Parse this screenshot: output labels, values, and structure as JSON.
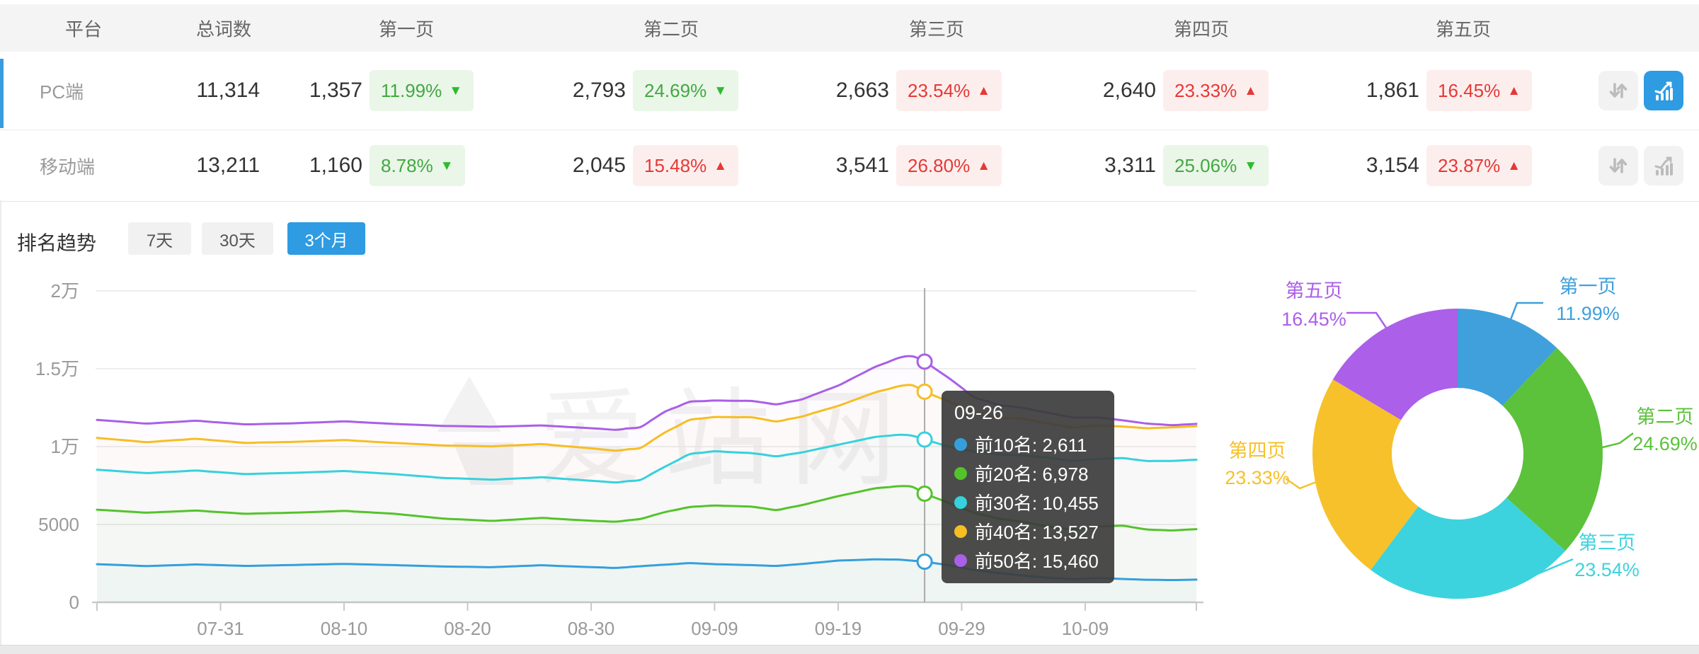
{
  "table": {
    "headers": [
      "平台",
      "总词数",
      "第一页",
      "第二页",
      "第三页",
      "第四页",
      "第五页"
    ],
    "rows": [
      {
        "platform": "PC端",
        "total": "11,314",
        "selected": true,
        "trend_button_active": true,
        "pages": [
          {
            "count": "1,357",
            "pct": "11.99%",
            "trend": "down",
            "tone": "green"
          },
          {
            "count": "2,793",
            "pct": "24.69%",
            "trend": "down",
            "tone": "green"
          },
          {
            "count": "2,663",
            "pct": "23.54%",
            "trend": "up",
            "tone": "red"
          },
          {
            "count": "2,640",
            "pct": "23.33%",
            "trend": "up",
            "tone": "red"
          },
          {
            "count": "1,861",
            "pct": "16.45%",
            "trend": "up",
            "tone": "red"
          }
        ]
      },
      {
        "platform": "移动端",
        "total": "13,211",
        "selected": false,
        "trend_button_active": false,
        "pages": [
          {
            "count": "1,160",
            "pct": "8.78%",
            "trend": "down",
            "tone": "green"
          },
          {
            "count": "2,045",
            "pct": "15.48%",
            "trend": "up",
            "tone": "red"
          },
          {
            "count": "3,541",
            "pct": "26.80%",
            "trend": "up",
            "tone": "red"
          },
          {
            "count": "3,311",
            "pct": "25.06%",
            "trend": "down",
            "tone": "green"
          },
          {
            "count": "3,154",
            "pct": "23.87%",
            "trend": "up",
            "tone": "red"
          }
        ]
      }
    ]
  },
  "trend_section": {
    "title": "排名趋势",
    "tabs": [
      {
        "label": "7天",
        "active": false
      },
      {
        "label": "30天",
        "active": false
      },
      {
        "label": "3个月",
        "active": true
      }
    ]
  },
  "watermark": "爱站网",
  "tooltip": {
    "title": "09-26",
    "rows": [
      {
        "name": "前10名",
        "value": "2,611",
        "color": "#359fdc"
      },
      {
        "name": "前20名",
        "value": "6,978",
        "color": "#54c32b"
      },
      {
        "name": "前30名",
        "value": "10,455",
        "color": "#36d1dc"
      },
      {
        "name": "前40名",
        "value": "13,527",
        "color": "#f6be23"
      },
      {
        "name": "前50名",
        "value": "15,460",
        "color": "#a95fe6"
      }
    ]
  },
  "chart_data": [
    {
      "type": "line",
      "title": "排名趋势 3个月",
      "x_axis": {
        "visible_labels": [
          "07-31",
          "08-10",
          "08-20",
          "08-30",
          "09-09",
          "09-19",
          "09-29",
          "10-09"
        ],
        "range_days": 90,
        "label_every": 10,
        "first_label_index": 10
      },
      "y_axis": {
        "ticks": [
          {
            "label": "2万",
            "value": 20000
          },
          {
            "label": "1.5万",
            "value": 15000
          },
          {
            "label": "1万",
            "value": 10000
          },
          {
            "label": "5000",
            "value": 5000
          },
          {
            "label": "0",
            "value": 0
          }
        ],
        "max": 20000,
        "grid": true
      },
      "highlight": {
        "date": "09-26",
        "index": 67
      },
      "series": [
        {
          "name": "前10名",
          "color": "#359fdc",
          "anchors": [
            [
              0,
              2450
            ],
            [
              4,
              2330
            ],
            [
              8,
              2430
            ],
            [
              12,
              2340
            ],
            [
              16,
              2400
            ],
            [
              20,
              2470
            ],
            [
              24,
              2390
            ],
            [
              28,
              2300
            ],
            [
              32,
              2260
            ],
            [
              36,
              2380
            ],
            [
              40,
              2260
            ],
            [
              42,
              2210
            ],
            [
              44,
              2320
            ],
            [
              46,
              2420
            ],
            [
              48,
              2520
            ],
            [
              50,
              2450
            ],
            [
              53,
              2390
            ],
            [
              55,
              2340
            ],
            [
              57,
              2460
            ],
            [
              60,
              2680
            ],
            [
              63,
              2760
            ],
            [
              65,
              2740
            ],
            [
              67,
              2611
            ],
            [
              69,
              2380
            ],
            [
              71,
              2080
            ],
            [
              73,
              1880
            ],
            [
              75,
              1720
            ],
            [
              77,
              1580
            ],
            [
              79,
              1490
            ],
            [
              81,
              1560
            ],
            [
              83,
              1500
            ],
            [
              85,
              1450
            ],
            [
              87,
              1430
            ],
            [
              89,
              1460
            ]
          ]
        },
        {
          "name": "前20名",
          "color": "#54c32b",
          "anchors": [
            [
              0,
              5950
            ],
            [
              4,
              5760
            ],
            [
              8,
              5890
            ],
            [
              12,
              5690
            ],
            [
              16,
              5760
            ],
            [
              20,
              5870
            ],
            [
              24,
              5690
            ],
            [
              28,
              5380
            ],
            [
              32,
              5230
            ],
            [
              36,
              5420
            ],
            [
              40,
              5240
            ],
            [
              42,
              5180
            ],
            [
              44,
              5360
            ],
            [
              46,
              5800
            ],
            [
              48,
              6120
            ],
            [
              50,
              6220
            ],
            [
              53,
              6140
            ],
            [
              55,
              5930
            ],
            [
              57,
              6230
            ],
            [
              60,
              6820
            ],
            [
              63,
              7320
            ],
            [
              65,
              7460
            ],
            [
              66,
              7420
            ],
            [
              67,
              6978
            ],
            [
              69,
              6380
            ],
            [
              71,
              5760
            ],
            [
              73,
              5380
            ],
            [
              75,
              5160
            ],
            [
              77,
              4870
            ],
            [
              79,
              4680
            ],
            [
              81,
              4860
            ],
            [
              83,
              4920
            ],
            [
              85,
              4680
            ],
            [
              87,
              4620
            ],
            [
              89,
              4700
            ]
          ]
        },
        {
          "name": "前30名",
          "color": "#36d1dc",
          "anchors": [
            [
              0,
              8520
            ],
            [
              4,
              8300
            ],
            [
              8,
              8460
            ],
            [
              12,
              8240
            ],
            [
              16,
              8320
            ],
            [
              20,
              8430
            ],
            [
              24,
              8240
            ],
            [
              28,
              7990
            ],
            [
              32,
              7880
            ],
            [
              36,
              8030
            ],
            [
              40,
              7810
            ],
            [
              42,
              7700
            ],
            [
              44,
              7870
            ],
            [
              46,
              8720
            ],
            [
              48,
              9520
            ],
            [
              50,
              9700
            ],
            [
              53,
              9580
            ],
            [
              55,
              9380
            ],
            [
              57,
              9620
            ],
            [
              60,
              10120
            ],
            [
              63,
              10620
            ],
            [
              65,
              10760
            ],
            [
              66,
              10700
            ],
            [
              67,
              10455
            ],
            [
              69,
              9990
            ],
            [
              71,
              9680
            ],
            [
              73,
              9490
            ],
            [
              75,
              9440
            ],
            [
              77,
              9280
            ],
            [
              79,
              9090
            ],
            [
              81,
              9210
            ],
            [
              83,
              9260
            ],
            [
              85,
              9080
            ],
            [
              87,
              9080
            ],
            [
              89,
              9160
            ]
          ]
        },
        {
          "name": "前40名",
          "color": "#f6be23",
          "anchors": [
            [
              0,
              10560
            ],
            [
              4,
              10290
            ],
            [
              8,
              10500
            ],
            [
              12,
              10240
            ],
            [
              16,
              10310
            ],
            [
              20,
              10420
            ],
            [
              24,
              10240
            ],
            [
              28,
              10080
            ],
            [
              32,
              10020
            ],
            [
              36,
              10160
            ],
            [
              40,
              9890
            ],
            [
              42,
              9740
            ],
            [
              44,
              9920
            ],
            [
              46,
              10920
            ],
            [
              48,
              11720
            ],
            [
              50,
              11900
            ],
            [
              53,
              11880
            ],
            [
              55,
              11620
            ],
            [
              57,
              11920
            ],
            [
              60,
              12620
            ],
            [
              63,
              13480
            ],
            [
              65,
              13890
            ],
            [
              66,
              13940
            ],
            [
              67,
              13527
            ],
            [
              69,
              12880
            ],
            [
              71,
              12180
            ],
            [
              73,
              11880
            ],
            [
              75,
              11780
            ],
            [
              77,
              11480
            ],
            [
              79,
              11230
            ],
            [
              81,
              11360
            ],
            [
              83,
              11290
            ],
            [
              85,
              11180
            ],
            [
              87,
              11240
            ],
            [
              89,
              11310
            ]
          ]
        },
        {
          "name": "前50名",
          "color": "#a95fe6",
          "anchors": [
            [
              0,
              11720
            ],
            [
              4,
              11480
            ],
            [
              8,
              11660
            ],
            [
              12,
              11430
            ],
            [
              16,
              11500
            ],
            [
              20,
              11620
            ],
            [
              24,
              11460
            ],
            [
              28,
              11330
            ],
            [
              32,
              11280
            ],
            [
              36,
              11360
            ],
            [
              40,
              11180
            ],
            [
              42,
              11080
            ],
            [
              44,
              11260
            ],
            [
              46,
              12250
            ],
            [
              48,
              12880
            ],
            [
              50,
              12960
            ],
            [
              53,
              12930
            ],
            [
              55,
              12720
            ],
            [
              57,
              13020
            ],
            [
              60,
              13920
            ],
            [
              63,
              15120
            ],
            [
              65,
              15720
            ],
            [
              66,
              15800
            ],
            [
              67,
              15460
            ],
            [
              69,
              14380
            ],
            [
              71,
              13180
            ],
            [
              73,
              12680
            ],
            [
              75,
              12480
            ],
            [
              77,
              12170
            ],
            [
              79,
              11880
            ],
            [
              81,
              11870
            ],
            [
              83,
              11690
            ],
            [
              85,
              11480
            ],
            [
              87,
              11380
            ],
            [
              89,
              11460
            ]
          ]
        }
      ]
    },
    {
      "type": "pie",
      "donut": true,
      "slices": [
        {
          "label": "第一页",
          "pct": 11.99,
          "color": "#3fa0dc"
        },
        {
          "label": "第二页",
          "pct": 24.69,
          "color": "#5cc13b"
        },
        {
          "label": "第三页",
          "pct": 23.54,
          "color": "#3cd3de"
        },
        {
          "label": "第四页",
          "pct": 23.33,
          "color": "#f6c12a"
        },
        {
          "label": "第五页",
          "pct": 16.45,
          "color": "#ac5fe8"
        }
      ]
    }
  ]
}
